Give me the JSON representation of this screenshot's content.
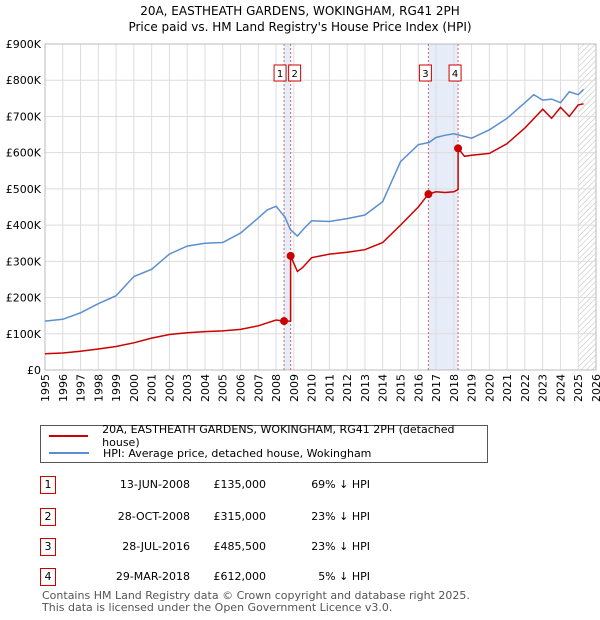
{
  "title_line1": "20A, EASTHEATH GARDENS, WOKINGHAM, RG41 2PH",
  "title_line2": "Price paid vs. HM Land Registry's House Price Index (HPI)",
  "colors": {
    "property": "#cc0000",
    "hpi": "#5b8fd0",
    "vline": "#e06070",
    "shade": "#e6ecf8"
  },
  "legend": {
    "property": "20A, EASTHEATH GARDENS, WOKINGHAM, RG41 2PH (detached house)",
    "hpi": "HPI: Average price, detached house, Wokingham"
  },
  "transactions": [
    {
      "num": "1",
      "date": "13-JUN-2008",
      "price": "£135,000",
      "hpi": "69% ↓ HPI"
    },
    {
      "num": "2",
      "date": "28-OCT-2008",
      "price": "£315,000",
      "hpi": "23% ↓ HPI"
    },
    {
      "num": "3",
      "date": "28-JUL-2016",
      "price": "£485,500",
      "hpi": "23% ↓ HPI"
    },
    {
      "num": "4",
      "date": "29-MAR-2018",
      "price": "£612,000",
      "hpi": "5% ↓ HPI"
    }
  ],
  "footer": {
    "line1": "Contains HM Land Registry data © Crown copyright and database right 2025.",
    "line2": "This data is licensed under the Open Government Licence v3.0."
  },
  "chart_data": {
    "type": "line",
    "xlim": [
      1995,
      2026
    ],
    "ylim": [
      0,
      900000
    ],
    "y_ticks": [
      0,
      100000,
      200000,
      300000,
      400000,
      500000,
      600000,
      700000,
      800000,
      900000
    ],
    "y_tick_labels": [
      "£0",
      "£100K",
      "£200K",
      "£300K",
      "£400K",
      "£500K",
      "£600K",
      "£700K",
      "£800K",
      "£900K"
    ],
    "x_ticks": [
      1995,
      1996,
      1997,
      1998,
      1999,
      2000,
      2001,
      2002,
      2003,
      2004,
      2005,
      2006,
      2007,
      2008,
      2009,
      2010,
      2011,
      2012,
      2013,
      2014,
      2015,
      2016,
      2017,
      2018,
      2019,
      2020,
      2021,
      2022,
      2023,
      2024,
      2025,
      2026
    ],
    "grid": true,
    "forecast_from": 2025.0,
    "shaded_spans": [
      [
        2008.45,
        2008.82
      ],
      [
        2016.57,
        2018.24
      ]
    ],
    "markers": [
      {
        "label": "1",
        "x": 2008.45,
        "y": 135000
      },
      {
        "label": "2",
        "x": 2008.82,
        "y": 315000
      },
      {
        "label": "3",
        "x": 2016.57,
        "y": 485500
      },
      {
        "label": "4",
        "x": 2018.24,
        "y": 612000
      }
    ],
    "series": [
      {
        "name": "20A, EASTHEATH GARDENS, WOKINGHAM, RG41 2PH (detached house)",
        "x": [
          1995,
          1996,
          1997,
          1998,
          1999,
          2000,
          2001,
          2002,
          2003,
          2004,
          2005,
          2006,
          2007,
          2008.0,
          2008.45,
          2008.45,
          2008.82,
          2008.82,
          2009.2,
          2009.5,
          2010,
          2011,
          2012,
          2013,
          2014,
          2015,
          2016,
          2016.57,
          2017,
          2017.5,
          2018.0,
          2018.24,
          2018.24,
          2018.6,
          2019,
          2020,
          2021,
          2022,
          2023,
          2023.5,
          2024,
          2024.5,
          2025,
          2025.3
        ],
        "y": [
          45000,
          47000,
          52000,
          58000,
          65000,
          75000,
          88000,
          98000,
          103000,
          106000,
          108000,
          112000,
          122000,
          138000,
          135000,
          135000,
          135000,
          315000,
          272000,
          283000,
          310000,
          320000,
          325000,
          332000,
          352000,
          400000,
          450000,
          485500,
          492000,
          490000,
          492000,
          498000,
          612000,
          590000,
          593000,
          598000,
          625000,
          668000,
          720000,
          695000,
          725000,
          700000,
          732000,
          735000
        ]
      },
      {
        "name": "HPI: Average price, detached house, Wokingham",
        "x": [
          1995,
          1996,
          1997,
          1998,
          1999,
          2000,
          2001,
          2002,
          2003,
          2004,
          2005,
          2006,
          2007,
          2007.5,
          2008.0,
          2008.5,
          2008.8,
          2009.2,
          2009.6,
          2010,
          2011,
          2012,
          2013,
          2014,
          2015,
          2016,
          2016.6,
          2017,
          2017.5,
          2018,
          2018.5,
          2019,
          2020,
          2021,
          2022,
          2022.5,
          2023,
          2023.5,
          2024,
          2024.5,
          2025,
          2025.3
        ],
        "y": [
          135000,
          140000,
          158000,
          183000,
          205000,
          258000,
          278000,
          320000,
          342000,
          350000,
          352000,
          378000,
          420000,
          442000,
          452000,
          422000,
          388000,
          370000,
          392000,
          412000,
          410000,
          418000,
          428000,
          465000,
          575000,
          622000,
          628000,
          642000,
          648000,
          652000,
          646000,
          640000,
          663000,
          695000,
          738000,
          760000,
          745000,
          748000,
          738000,
          768000,
          760000,
          775000
        ]
      }
    ]
  }
}
